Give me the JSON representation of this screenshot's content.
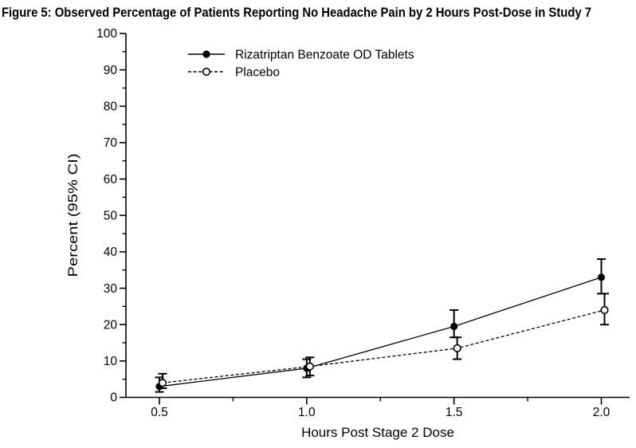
{
  "colors": {
    "ink": "#000000",
    "background": "#ffffff"
  },
  "chart_data": {
    "type": "line",
    "title": "Figure 5: Observed Percentage of Patients Reporting No Headache Pain by 2 Hours Post-Dose in Study 7",
    "xlabel": "Hours Post Stage 2 Dose",
    "ylabel": "Percent (95% CI)",
    "x": [
      0.5,
      1.0,
      1.5,
      2.0
    ],
    "x_tick_labels": [
      "0.5",
      "1.0",
      "1.5",
      "2.0"
    ],
    "x_minor_ticks": [
      0.75,
      1.25,
      1.75
    ],
    "ylim": [
      0,
      100
    ],
    "y_tick_labels": [
      "0",
      "10",
      "20",
      "30",
      "40",
      "50",
      "60",
      "70",
      "80",
      "90",
      "100"
    ],
    "y_major_tick_step": 10,
    "y_minor_tick_step": 5,
    "grid": false,
    "legend_position": "upper-left-inside",
    "error_bars": "95% CI",
    "series": [
      {
        "name": "Rizatriptan Benzoate OD Tablets",
        "line_style": "solid",
        "marker": "filled-circle",
        "color": "#000000",
        "values": [
          3,
          8,
          19.5,
          33
        ],
        "ci_lower": [
          1.5,
          5.5,
          16.5,
          28.5
        ],
        "ci_upper": [
          5.5,
          10.5,
          24,
          38
        ]
      },
      {
        "name": "Placebo",
        "line_style": "dashed",
        "marker": "open-circle",
        "color": "#000000",
        "values": [
          4,
          8.5,
          13.5,
          24
        ],
        "ci_lower": [
          2.5,
          6,
          10.5,
          20
        ],
        "ci_upper": [
          6.5,
          11,
          16.5,
          28.5
        ]
      }
    ]
  }
}
